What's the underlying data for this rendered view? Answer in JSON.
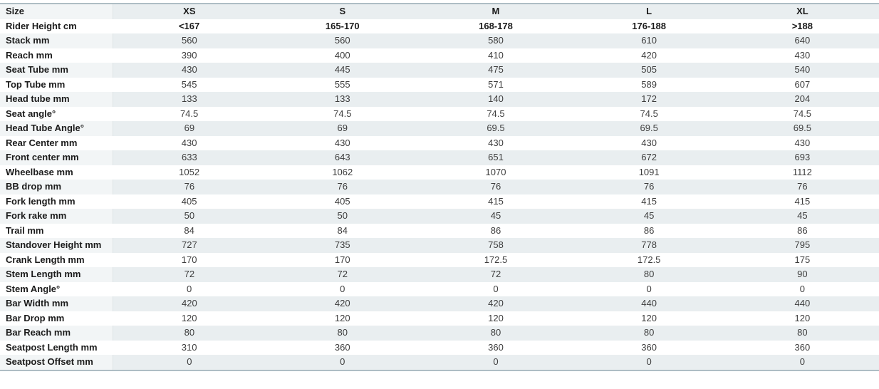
{
  "colors": {
    "table_border": "#aebdc4",
    "stripe_value_bg": "#e9eef0",
    "stripe_label_bg": "#f2f5f6",
    "label_divider": "#dde3e5",
    "label_text": "#1b1b1b",
    "value_text": "#3d3d3d",
    "background": "#ffffff"
  },
  "chart_data": {
    "type": "table",
    "columns": [
      "Size",
      "XS",
      "S",
      "M",
      "L",
      "XL"
    ],
    "rows": [
      {
        "label": "Rider Height cm",
        "values": [
          "<167",
          "165-170",
          "168-178",
          "176-188",
          ">188"
        ],
        "emphasis": true
      },
      {
        "label": "Stack mm",
        "values": [
          "560",
          "560",
          "580",
          "610",
          "640"
        ]
      },
      {
        "label": "Reach mm",
        "values": [
          "390",
          "400",
          "410",
          "420",
          "430"
        ]
      },
      {
        "label": "Seat Tube mm",
        "values": [
          "430",
          "445",
          "475",
          "505",
          "540"
        ]
      },
      {
        "label": "Top Tube mm",
        "values": [
          "545",
          "555",
          "571",
          "589",
          "607"
        ]
      },
      {
        "label": "Head tube mm",
        "values": [
          "133",
          "133",
          "140",
          "172",
          "204"
        ]
      },
      {
        "label": "Seat angle°",
        "values": [
          "74.5",
          "74.5",
          "74.5",
          "74.5",
          "74.5"
        ]
      },
      {
        "label": "Head Tube Angle°",
        "values": [
          "69",
          "69",
          "69.5",
          "69.5",
          "69.5"
        ]
      },
      {
        "label": "Rear Center mm",
        "values": [
          "430",
          "430",
          "430",
          "430",
          "430"
        ]
      },
      {
        "label": "Front center mm",
        "values": [
          "633",
          "643",
          "651",
          "672",
          "693"
        ]
      },
      {
        "label": "Wheelbase mm",
        "values": [
          "1052",
          "1062",
          "1070",
          "1091",
          "1112"
        ]
      },
      {
        "label": "BB drop mm",
        "values": [
          "76",
          "76",
          "76",
          "76",
          "76"
        ]
      },
      {
        "label": "Fork length mm",
        "values": [
          "405",
          "405",
          "415",
          "415",
          "415"
        ]
      },
      {
        "label": "Fork rake mm",
        "values": [
          "50",
          "50",
          "45",
          "45",
          "45"
        ]
      },
      {
        "label": "Trail mm",
        "values": [
          "84",
          "84",
          "86",
          "86",
          "86"
        ]
      },
      {
        "label": "Standover Height mm",
        "values": [
          "727",
          "735",
          "758",
          "778",
          "795"
        ]
      },
      {
        "label": "Crank Length mm",
        "values": [
          "170",
          "170",
          "172.5",
          "172.5",
          "175"
        ]
      },
      {
        "label": "Stem Length mm",
        "values": [
          "72",
          "72",
          "72",
          "80",
          "90"
        ]
      },
      {
        "label": "Stem Angle°",
        "values": [
          "0",
          "0",
          "0",
          "0",
          "0"
        ]
      },
      {
        "label": "Bar Width mm",
        "values": [
          "420",
          "420",
          "420",
          "440",
          "440"
        ]
      },
      {
        "label": "Bar Drop mm",
        "values": [
          "120",
          "120",
          "120",
          "120",
          "120"
        ]
      },
      {
        "label": "Bar Reach mm",
        "values": [
          "80",
          "80",
          "80",
          "80",
          "80"
        ]
      },
      {
        "label": "Seatpost Length mm",
        "values": [
          "310",
          "360",
          "360",
          "360",
          "360"
        ]
      },
      {
        "label": "Seatpost Offset mm",
        "values": [
          "0",
          "0",
          "0",
          "0",
          "0"
        ]
      }
    ]
  }
}
